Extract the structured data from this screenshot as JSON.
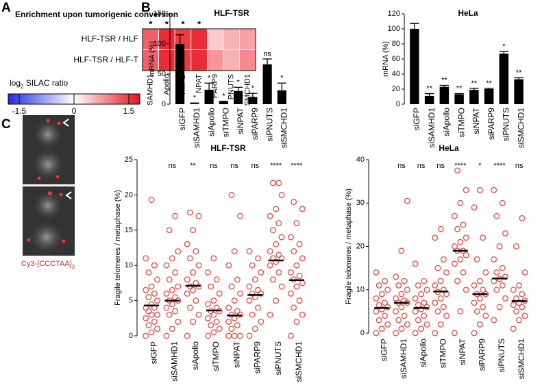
{
  "panel_labels": [
    "A",
    "B",
    "C"
  ],
  "image": {
    "caption": "Cy3-[CCCTAA]",
    "caption_subscript": "3"
  },
  "chart_data": [
    {
      "type": "heatmap",
      "title": "Enrichment upon tumorigenic conversion",
      "rows": [
        "HLF-TSR / HLF",
        "HLF-TSR / HLF-T"
      ],
      "columns": [
        "SAMHD1",
        "Apollo",
        "TMPO",
        "NPAT",
        "PARP9",
        "PNUTS",
        "SMCHD1"
      ],
      "values": [
        [
          1.2,
          1.6,
          1.5,
          1.6,
          0.4,
          0.6,
          0.7
        ],
        [
          1.2,
          1.6,
          1.5,
          1.6,
          0.8,
          0.6,
          0.9
        ]
      ],
      "annotations": [
        "*",
        "*",
        "*",
        "*",
        null,
        null,
        null
      ],
      "colorbar": {
        "label": "log",
        "label_subscript": "2",
        "label_rest": " SILAC ratio",
        "lim": [
          -1.8,
          1.8
        ],
        "ticks": [
          -1.5,
          0,
          1.5
        ],
        "colors": [
          "#1f2ee8",
          "#ffffff",
          "#e8121c"
        ]
      }
    },
    {
      "type": "bar",
      "title": "HLF-TSR",
      "ylabel": "mRNA (%)",
      "categories": [
        "siGFP",
        "siSAMHD1",
        "siApollo",
        "siTMPO",
        "siNPAT",
        "siPARP9",
        "siPNUTS",
        "siSMCHD1"
      ],
      "values": [
        100,
        1,
        24,
        4,
        22,
        12,
        66,
        23
      ],
      "errors": [
        15,
        1,
        11,
        1,
        6,
        6,
        9,
        12
      ],
      "annotations": [
        null,
        "*",
        "*",
        "*",
        "*",
        "*",
        "ns",
        "*"
      ],
      "ylim": [
        0,
        150
      ],
      "yticks": [
        0,
        50,
        100,
        150
      ],
      "color": "#000000"
    },
    {
      "type": "bar",
      "title": "HeLa",
      "ylabel": "mRNA (%)",
      "categories": [
        "siGFP",
        "siSAMHD1",
        "siApollo",
        "siTMPO",
        "siNPAT",
        "siPARP9",
        "siPNUTS",
        "siSMCHD1"
      ],
      "values": [
        100,
        11,
        23,
        13,
        19,
        20,
        67,
        33
      ],
      "errors": [
        7,
        3,
        2,
        1,
        2,
        1,
        3,
        2
      ],
      "annotations": [
        null,
        "**",
        "**",
        "**",
        "**",
        "**",
        "*",
        "**"
      ],
      "ylim": [
        0,
        120
      ],
      "yticks": [
        0,
        20,
        40,
        60,
        80,
        100,
        120
      ],
      "color": "#000000"
    },
    {
      "type": "strip",
      "title": "HLF-TSR",
      "ylabel": "Fragile telomeres / metaphase (%)",
      "categories": [
        "siGFP",
        "siSAMHD1",
        "siApollo",
        "siTMPO",
        "siNPAT",
        "siPARP9",
        "siPNUTS",
        "siSMCHD1"
      ],
      "points": [
        [
          0,
          0.5,
          1,
          1.5,
          2,
          2.5,
          3,
          3,
          3.5,
          4,
          4,
          4.5,
          5,
          5.5,
          6,
          6.5,
          7,
          8,
          9,
          10,
          11,
          19.3
        ],
        [
          0,
          1,
          2,
          3,
          3.5,
          4,
          4.5,
          5,
          5,
          5.5,
          6,
          6.5,
          7,
          8,
          9,
          10,
          11,
          12,
          15,
          17
        ],
        [
          0,
          2,
          3,
          4,
          5,
          6,
          6.5,
          7,
          7,
          7.5,
          8,
          9,
          10,
          11,
          12,
          13,
          15,
          17,
          17.5
        ],
        [
          0,
          0.5,
          1,
          1.5,
          2,
          2.5,
          3,
          3.5,
          3.5,
          4,
          4.5,
          5,
          6,
          7,
          8,
          9,
          11
        ],
        [
          0,
          0,
          0,
          1,
          1.5,
          2,
          2.5,
          3,
          3,
          3.5,
          4,
          5,
          6,
          7,
          8,
          10,
          12,
          17,
          20
        ],
        [
          0,
          1,
          2,
          3,
          4,
          5,
          5.5,
          6,
          6,
          6.5,
          7,
          8,
          9,
          10,
          11,
          12
        ],
        [
          3,
          5,
          7,
          8,
          9,
          10,
          10.5,
          11,
          11,
          11.5,
          12,
          13,
          14,
          15,
          16,
          17,
          18,
          20,
          21.7,
          21.7
        ],
        [
          0,
          2,
          3,
          4,
          5,
          6,
          7,
          7.5,
          8,
          8.5,
          9,
          10,
          11,
          12,
          13,
          14,
          16,
          18,
          19
        ]
      ],
      "medians": [
        4.3,
        5.0,
        7.1,
        3.6,
        2.9,
        5.8,
        10.7,
        7.9
      ],
      "annotations": [
        null,
        "ns",
        "**",
        "ns",
        "ns",
        "ns",
        "****",
        "****"
      ],
      "ylim": [
        0,
        25
      ],
      "yticks": [
        0,
        5,
        10,
        15,
        20,
        25
      ],
      "color": "#e0574e"
    },
    {
      "type": "strip",
      "title": "HeLa",
      "ylabel": "Fragile telomeres / metaphase (%)",
      "categories": [
        "siGFP",
        "siSAMHD1",
        "siApollo",
        "siTMPO",
        "siNPAT",
        "siPARP9",
        "siPNUTS",
        "siSMCHD1"
      ],
      "points": [
        [
          0,
          1,
          2,
          3,
          4,
          5,
          5.5,
          6,
          6.5,
          7,
          8,
          9,
          10,
          11,
          12,
          14
        ],
        [
          0,
          1,
          2,
          3,
          4,
          5,
          6,
          7,
          7,
          7.5,
          8,
          9,
          10,
          11,
          12,
          13,
          19,
          30.5
        ],
        [
          0,
          1,
          2,
          3,
          4,
          5,
          5.5,
          6,
          6.5,
          7,
          8,
          9,
          10,
          11,
          12,
          16
        ],
        [
          0,
          2,
          4,
          5,
          6,
          7,
          8,
          9,
          9.5,
          10,
          11,
          12,
          14,
          15,
          17,
          22,
          24
        ],
        [
          0,
          5,
          10,
          12,
          14,
          16,
          17,
          18,
          19,
          19,
          20,
          21,
          22,
          24,
          25,
          27,
          30,
          33,
          37.5
        ],
        [
          0,
          2,
          4,
          5,
          6,
          7,
          8,
          9,
          9,
          10,
          11,
          12,
          14,
          17,
          22,
          29,
          33
        ],
        [
          3,
          6,
          8,
          10,
          11,
          12,
          12.5,
          13,
          14,
          15,
          17,
          20,
          23,
          27,
          30,
          33
        ],
        [
          1,
          3,
          4,
          5,
          6,
          6.5,
          7,
          7.5,
          8,
          9,
          10,
          11,
          14,
          20,
          26.5
        ]
      ],
      "medians": [
        5.8,
        7.0,
        5.8,
        9.6,
        19.0,
        9.0,
        12.6,
        7.4
      ],
      "annotations": [
        null,
        "ns",
        "ns",
        "ns",
        "****",
        "*",
        "****",
        "ns"
      ],
      "ylim": [
        0,
        40
      ],
      "yticks": [
        0,
        10,
        20,
        30,
        40
      ],
      "color": "#e0574e"
    }
  ]
}
